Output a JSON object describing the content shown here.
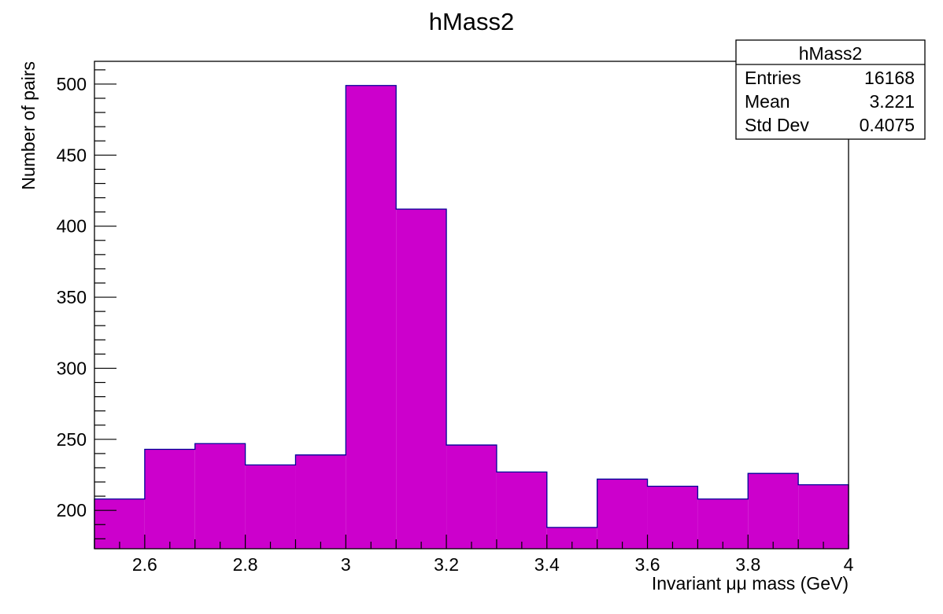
{
  "chart_data": {
    "type": "bar",
    "title": "hMass2",
    "xlabel": "Invariant μμ mass (GeV)",
    "ylabel": "Number of pairs",
    "xlim": [
      2.5,
      4.0
    ],
    "ylim": [
      173,
      516
    ],
    "x_ticks": [
      2.6,
      2.8,
      3,
      3.2,
      3.4,
      3.6,
      3.8,
      4
    ],
    "x_tick_labels": [
      "2.6",
      "2.8",
      "3",
      "3.2",
      "3.4",
      "3.6",
      "3.8",
      "4"
    ],
    "y_ticks": [
      200,
      250,
      300,
      350,
      400,
      450,
      500
    ],
    "y_tick_labels": [
      "200",
      "250",
      "300",
      "350",
      "400",
      "450",
      "500"
    ],
    "bin_edges": [
      2.5,
      2.6,
      2.7,
      2.8,
      2.9,
      3.0,
      3.1,
      3.2,
      3.3,
      3.4,
      3.5,
      3.6,
      3.7,
      3.8,
      3.9,
      4.0
    ],
    "values": [
      208,
      243,
      247,
      232,
      239,
      499,
      412,
      246,
      227,
      188,
      222,
      217,
      208,
      226,
      218
    ],
    "fill_color": "#cc00cc",
    "line_color": "#000099",
    "grid": false,
    "legend": "none",
    "stats_box": {
      "placement": "top-right",
      "title": "hMass2",
      "rows": [
        {
          "label": "Entries",
          "value": "16168"
        },
        {
          "label": "Mean",
          "value": "3.221"
        },
        {
          "label": "Std Dev",
          "value": "0.4075"
        }
      ]
    }
  }
}
